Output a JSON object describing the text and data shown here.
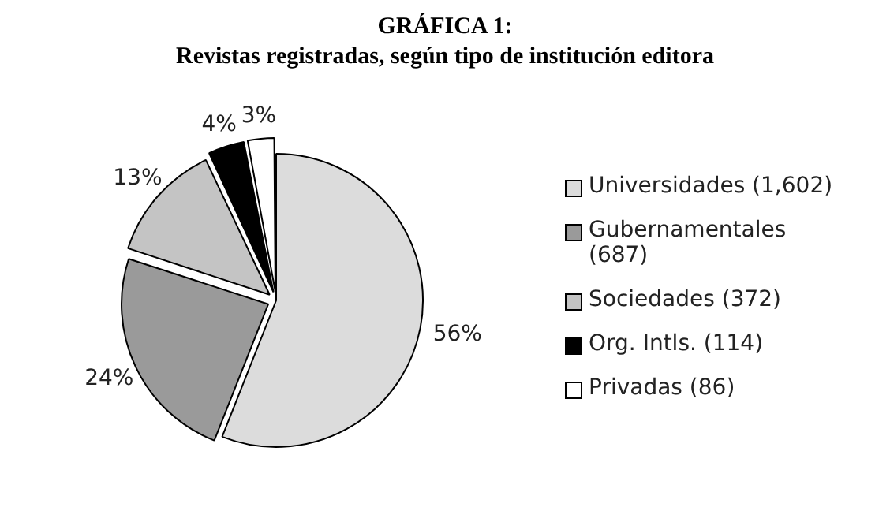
{
  "chart_data": {
    "type": "pie",
    "title": "GRÁFICA 1:",
    "subtitle": "Revistas registradas, según tipo de institución editora",
    "categories": [
      "Universidades (1,602)",
      "Gubernamentales (687)",
      "Sociedades (372)",
      "Org. Intls. (114)",
      "Privadas (86)"
    ],
    "values": [
      56,
      24,
      13,
      4,
      3
    ],
    "colors": [
      "#dcdcdc",
      "#9a9a9a",
      "#c4c4c4",
      "#000000",
      "#ffffff"
    ],
    "value_labels": [
      "56%",
      "24%",
      "13%",
      "4%",
      "3%"
    ],
    "legend": "right"
  }
}
